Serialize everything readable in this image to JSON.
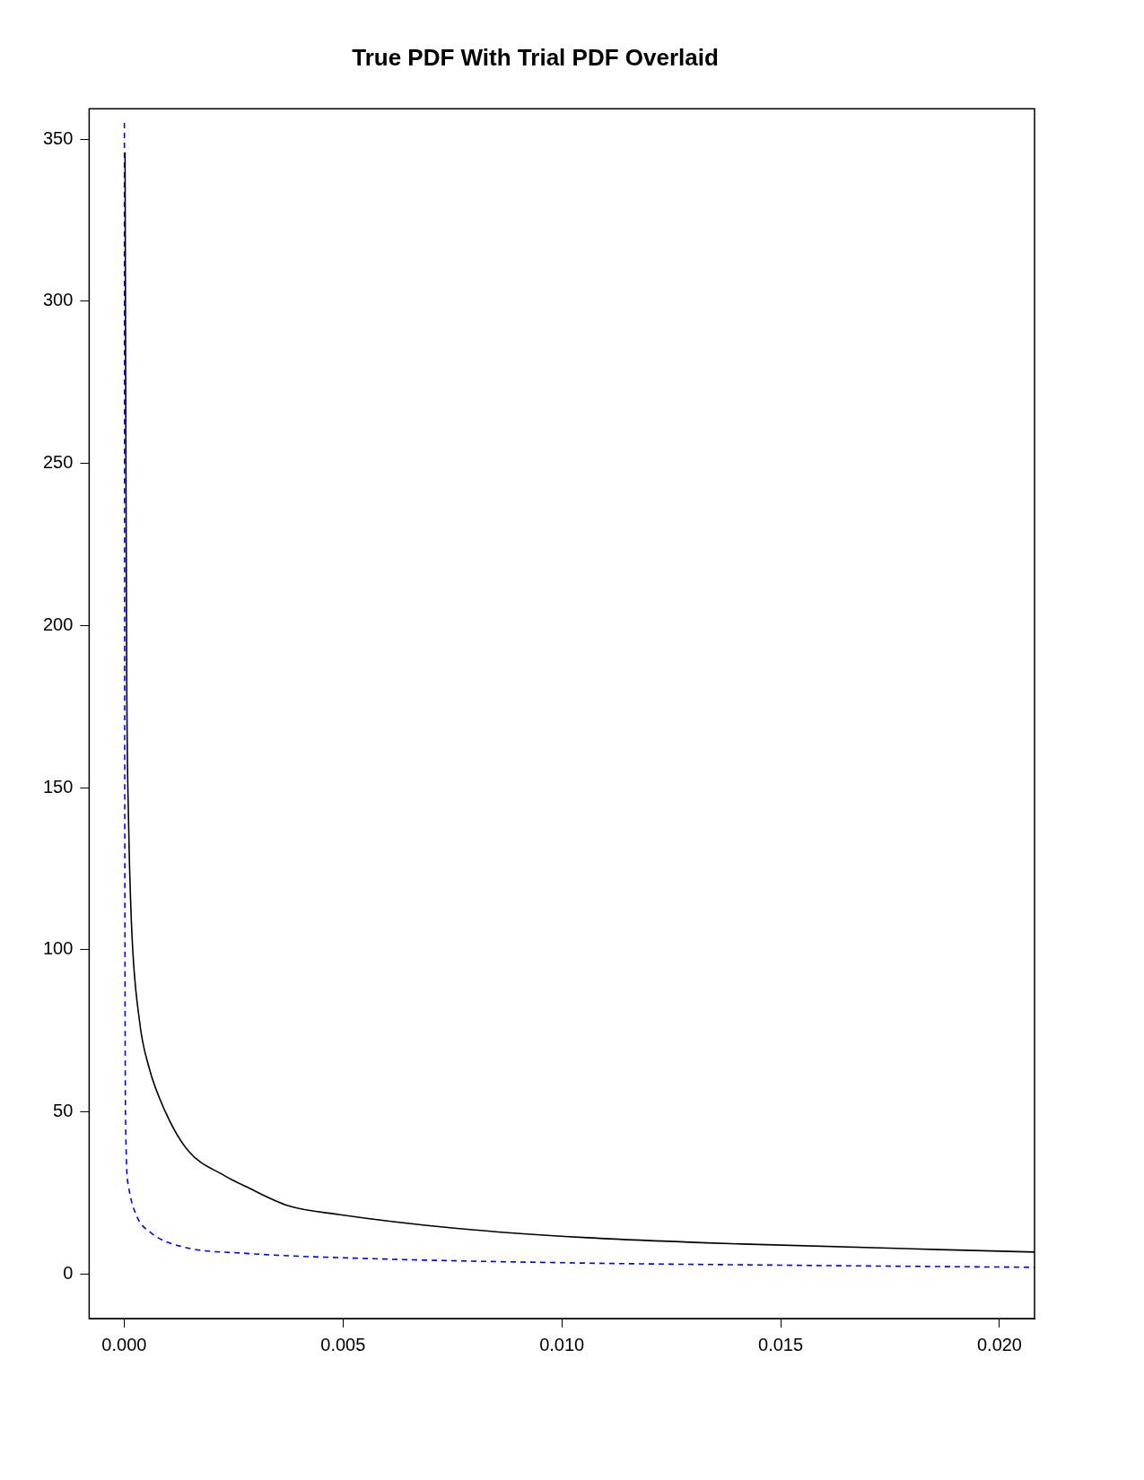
{
  "chart_data": {
    "type": "line",
    "title": "True PDF With Trial PDF Overlaid",
    "xlim": [
      -0.0008,
      0.0208
    ],
    "xticks": [
      {
        "value": 0,
        "label": "0.000"
      },
      {
        "value": 0.005,
        "label": "0.005"
      },
      {
        "value": 0.01,
        "label": "0.010"
      },
      {
        "value": 0.015,
        "label": "0.015"
      },
      {
        "value": 0.02,
        "label": "0.020"
      }
    ],
    "ylim": [
      -13.8,
      359.4
    ],
    "yticks": [
      0,
      50,
      100,
      150,
      200,
      250,
      300,
      350
    ],
    "grid": false,
    "legend": false,
    "marker": "none",
    "series": [
      {
        "color": "#000000",
        "line_style": "solid",
        "x": [
          2e-05,
          4e-05,
          6e-05,
          0.0001,
          0.00017,
          0.00035,
          0.00056,
          0.00094,
          0.00146,
          0.00229,
          0.00277,
          0.00375,
          0.0049,
          0.0076,
          0.0105,
          0.0141,
          0.0208
        ],
        "values": [
          346,
          250,
          180,
          140,
          107,
          78,
          64,
          50,
          38,
          30.3,
          27,
          21,
          18.3,
          14,
          11.2,
          9.2,
          6.7
        ]
      },
      {
        "color": "#0000ff",
        "line_style": "dashed",
        "x": [
          5e-06,
          1e-05,
          2e-05,
          3e-05,
          0.0001,
          0.00027,
          0.00062,
          0.00135,
          0.0028,
          0.0051,
          0.0101,
          0.0155,
          0.0208
        ],
        "values": [
          355,
          200,
          90,
          50,
          27,
          18.3,
          12.6,
          8.3,
          6.3,
          4.9,
          3.4,
          2.6,
          2.0
        ]
      }
    ]
  }
}
